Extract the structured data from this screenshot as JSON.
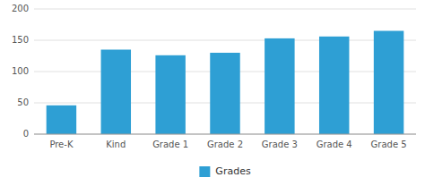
{
  "chart_data": {
    "type": "bar",
    "categories": [
      "Pre-K",
      "Kind",
      "Grade 1",
      "Grade 2",
      "Grade 3",
      "Grade 4",
      "Grade 5"
    ],
    "series": [
      {
        "name": "Grades",
        "color": "#2e9fd4",
        "values": [
          46,
          135,
          126,
          130,
          153,
          156,
          165
        ]
      }
    ],
    "ylim": [
      0,
      200
    ],
    "yticks": [
      0,
      50,
      100,
      150,
      200
    ],
    "grid": true,
    "legend": "bottom"
  }
}
